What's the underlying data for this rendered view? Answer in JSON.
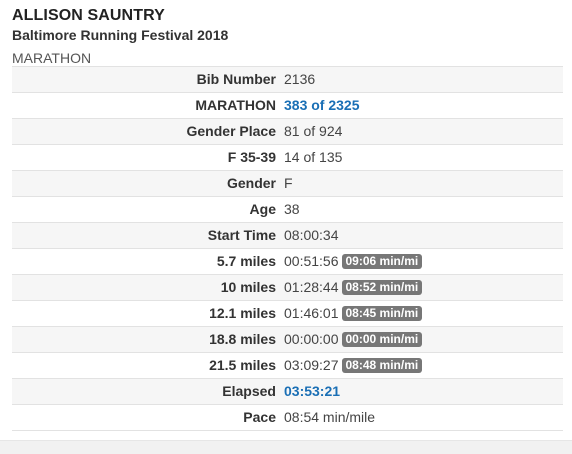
{
  "athlete": {
    "name": "ALLISON SAUNTRY",
    "event": "Baltimore Running Festival 2018",
    "race": "MARATHON"
  },
  "rows": {
    "bib": {
      "label": "Bib Number",
      "value": "2136"
    },
    "overall": {
      "label": "MARATHON",
      "value": "383 of 2325"
    },
    "gender_place": {
      "label": "Gender Place",
      "value": "81 of 924"
    },
    "division": {
      "label": "F 35-39",
      "value": "14 of 135"
    },
    "gender": {
      "label": "Gender",
      "value": "F"
    },
    "age": {
      "label": "Age",
      "value": "38"
    },
    "start_time": {
      "label": "Start Time",
      "value": "08:00:34"
    },
    "split_1": {
      "label": "5.7 miles",
      "value": "00:51:56",
      "pace": "09:06 min/mi"
    },
    "split_2": {
      "label": "10 miles",
      "value": "01:28:44",
      "pace": "08:52 min/mi"
    },
    "split_3": {
      "label": "12.1 miles",
      "value": "01:46:01",
      "pace": "08:45 min/mi"
    },
    "split_4": {
      "label": "18.8 miles",
      "value": "00:00:00",
      "pace": "00:00 min/mi"
    },
    "split_5": {
      "label": "21.5 miles",
      "value": "03:09:27",
      "pace": "08:48 min/mi"
    },
    "elapsed": {
      "label": "Elapsed",
      "value": "03:53:21"
    },
    "pace": {
      "label": "Pace",
      "value": "08:54 min/mile"
    }
  },
  "colors": {
    "link": "#1a6fb5",
    "badge": "#777777",
    "row_alt": "#f6f6f6",
    "border": "#e2e2e2"
  }
}
